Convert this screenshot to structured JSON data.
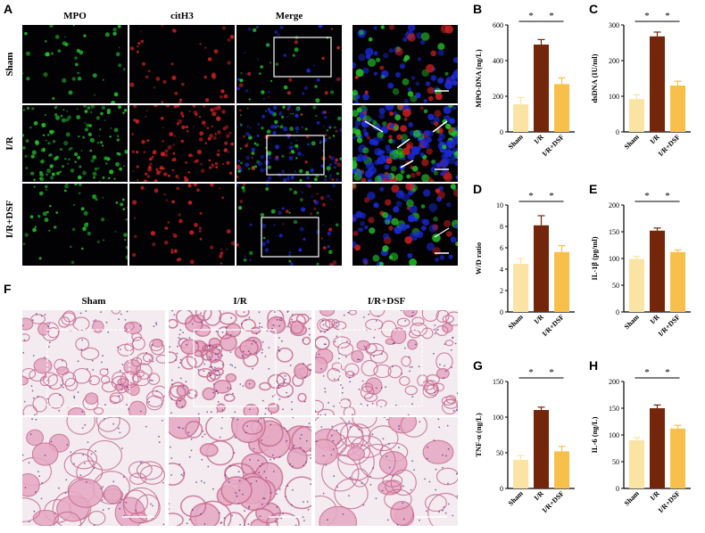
{
  "panels": {
    "A": "A",
    "B": "B",
    "C": "C",
    "D": "D",
    "E": "E",
    "F": "F",
    "G": "G",
    "H": "H"
  },
  "microscopy": {
    "columns": [
      "MPO",
      "citH3",
      "Merge"
    ],
    "rows": [
      "Sham",
      "I/R",
      "I/R+DSF"
    ],
    "he_columns": [
      "Sham",
      "I/R",
      "I/R+DSF"
    ]
  },
  "colors": {
    "sham": "#fbe3a3",
    "ir": "#74260b",
    "irdsf": "#f8c04a",
    "mpo": "#22c02a",
    "cith3": "#d02020",
    "dapi": "#1a2ad8",
    "he_stroke": "#c76a8f"
  },
  "chart_data": [
    {
      "id": "B",
      "type": "bar",
      "categories": [
        "Sham",
        "I/R",
        "I/R+DSF"
      ],
      "values": [
        155,
        490,
        268
      ],
      "errors": [
        38,
        28,
        35
      ],
      "ylabel": "MPO-DNA (ng/L)",
      "ylim": [
        0,
        600
      ],
      "yticks": [
        0,
        200,
        400,
        600
      ],
      "significance": [
        "*",
        "*"
      ]
    },
    {
      "id": "C",
      "type": "bar",
      "categories": [
        "Sham",
        "I/R",
        "I/R+DSF"
      ],
      "values": [
        92,
        268,
        130
      ],
      "errors": [
        12,
        12,
        12
      ],
      "ylabel": "dsDNA (IU/ml)",
      "ylim": [
        0,
        300
      ],
      "yticks": [
        0,
        100,
        200,
        300
      ],
      "significance": [
        "*",
        "*"
      ]
    },
    {
      "id": "D",
      "type": "bar",
      "categories": [
        "Sham",
        "I/R",
        "I/R+DSF"
      ],
      "values": [
        4.5,
        8.1,
        5.6
      ],
      "errors": [
        0.5,
        0.9,
        0.6
      ],
      "ylabel": "W/D ratio",
      "ylim": [
        0,
        10
      ],
      "yticks": [
        0,
        2,
        4,
        6,
        8,
        10
      ],
      "significance": [
        "*",
        "*"
      ]
    },
    {
      "id": "E",
      "type": "bar",
      "categories": [
        "Sham",
        "I/R",
        "I/R+DSF"
      ],
      "values": [
        99,
        152,
        112
      ],
      "errors": [
        5,
        5,
        4
      ],
      "ylabel": "IL-1β (pg/ml)",
      "ylim": [
        0,
        200
      ],
      "yticks": [
        0,
        50,
        100,
        150,
        200
      ],
      "significance": [
        "*",
        "*"
      ]
    },
    {
      "id": "G",
      "type": "bar",
      "categories": [
        "Sham",
        "I/R",
        "I/R+DSF"
      ],
      "values": [
        40,
        110,
        52
      ],
      "errors": [
        6,
        4,
        7
      ],
      "ylabel": "TNF-α (ng/L)",
      "ylim": [
        0,
        150
      ],
      "yticks": [
        0,
        50,
        100,
        150
      ],
      "significance": [
        "*",
        "*"
      ]
    },
    {
      "id": "H",
      "type": "bar",
      "categories": [
        "Sham",
        "I/R",
        "I/R+DSF"
      ],
      "values": [
        90,
        150,
        112
      ],
      "errors": [
        5,
        6,
        6
      ],
      "ylabel": "IL-6 (ng/L)",
      "ylim": [
        0,
        200
      ],
      "yticks": [
        0,
        50,
        100,
        150,
        200
      ],
      "significance": [
        "*",
        "*"
      ]
    }
  ]
}
